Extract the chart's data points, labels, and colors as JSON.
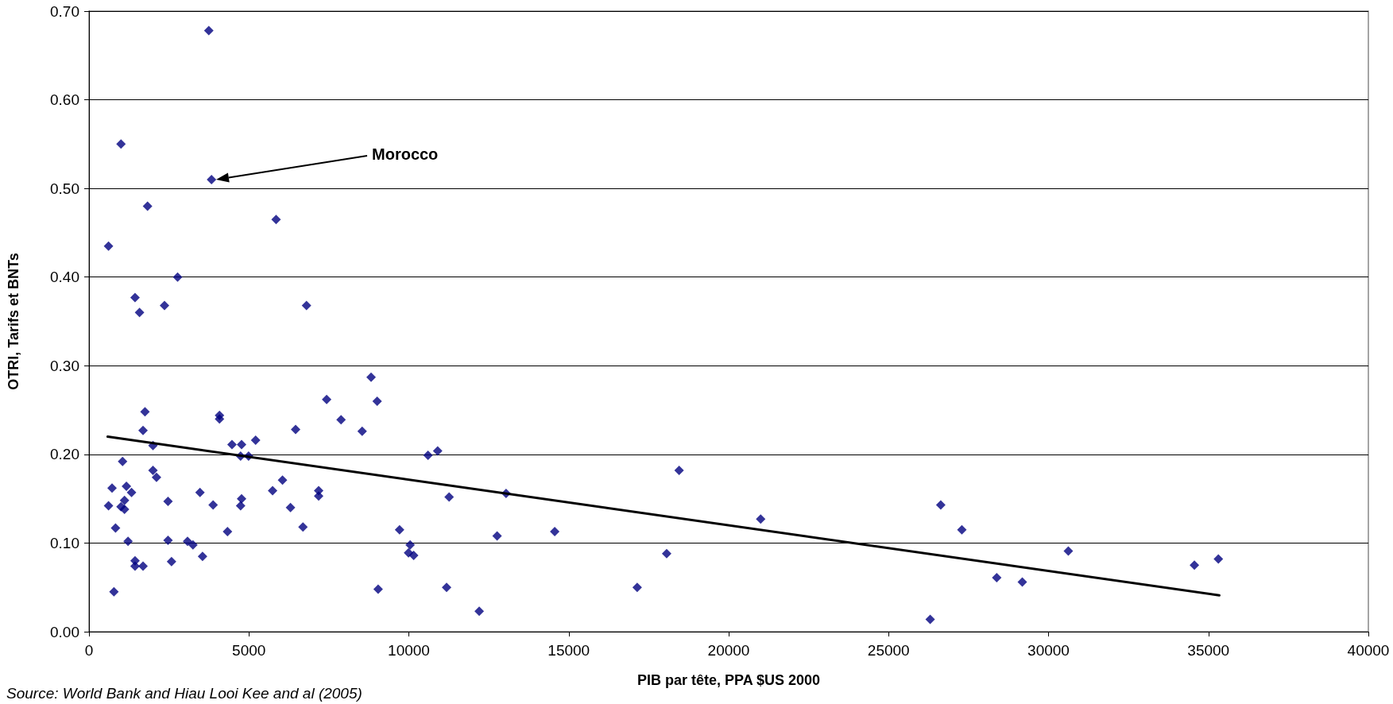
{
  "chart_data": {
    "type": "scatter",
    "xlabel": "PIB par tête, PPA $US 2000",
    "ylabel": "OTRI, Tarifs et BNTs",
    "annotations": [
      "Morocco",
      "Source: World Bank and Hiau Looi Kee and al (2005)"
    ],
    "xlim": [
      0,
      40000
    ],
    "xticks": [
      0,
      5000,
      10000,
      15000,
      20000,
      25000,
      30000,
      35000,
      40000
    ],
    "ylim": [
      0,
      0.7
    ],
    "yticks": [
      {
        "value": 0,
        "label": "0.00"
      },
      {
        "value": 0.1,
        "label": "0.10"
      },
      {
        "value": 0.2,
        "label": "0.20"
      },
      {
        "value": 0.3,
        "label": "0.30"
      },
      {
        "value": 0.4,
        "label": "0.40"
      },
      {
        "value": 0.5,
        "label": "0.50"
      },
      {
        "value": 0.6,
        "label": "0.60"
      },
      {
        "value": 0.7,
        "label": "0.70"
      }
    ],
    "grid": "y",
    "marker": "diamond",
    "series": [
      {
        "type": "scatter",
        "color": "#000080",
        "x": [
          3745,
          1000,
          3830,
          1830,
          5850,
          610,
          2770,
          1440,
          2360,
          1580,
          6800,
          8820,
          9010,
          7430,
          1750,
          4080,
          4080,
          7880,
          1690,
          6460,
          8540,
          5210,
          4470,
          4770,
          2000,
          10900,
          10600,
          4740,
          4990,
          1050,
          2000,
          18450,
          2110,
          6050,
          1170,
          720,
          1330,
          3470,
          5740,
          7180,
          13040,
          7180,
          11260,
          1110,
          2470,
          4770,
          1000,
          610,
          3880,
          4740,
          6300,
          26630,
          1110,
          21000,
          6690,
          830,
          4330,
          9710,
          14560,
          27290,
          12760,
          1220,
          2470,
          3080,
          3250,
          10040,
          9990,
          10150,
          3550,
          18060,
          30620,
          1440,
          1440,
          1690,
          2580,
          34560,
          35310,
          28380,
          29180,
          9040,
          11180,
          17140,
          780,
          12200,
          26300
        ],
        "values": [
          0.678,
          0.55,
          0.51,
          0.48,
          0.465,
          0.435,
          0.4,
          0.377,
          0.368,
          0.36,
          0.368,
          0.287,
          0.26,
          0.262,
          0.248,
          0.244,
          0.24,
          0.239,
          0.227,
          0.228,
          0.226,
          0.216,
          0.211,
          0.211,
          0.21,
          0.204,
          0.199,
          0.198,
          0.198,
          0.192,
          0.182,
          0.182,
          0.174,
          0.171,
          0.164,
          0.162,
          0.157,
          0.157,
          0.159,
          0.159,
          0.156,
          0.153,
          0.152,
          0.148,
          0.147,
          0.15,
          0.141,
          0.142,
          0.143,
          0.142,
          0.14,
          0.143,
          0.138,
          0.127,
          0.118,
          0.117,
          0.113,
          0.115,
          0.113,
          0.115,
          0.108,
          0.102,
          0.103,
          0.102,
          0.098,
          0.098,
          0.089,
          0.086,
          0.085,
          0.088,
          0.091,
          0.08,
          0.074,
          0.074,
          0.079,
          0.075,
          0.082,
          0.061,
          0.056,
          0.048,
          0.05,
          0.05,
          0.045,
          0.023,
          0.014
        ]
      },
      {
        "type": "line",
        "color": "#000000",
        "marker": "none",
        "line_style": "solid",
        "x": [
          583,
          35340
        ],
        "values": [
          0.22,
          0.041
        ]
      }
    ]
  }
}
